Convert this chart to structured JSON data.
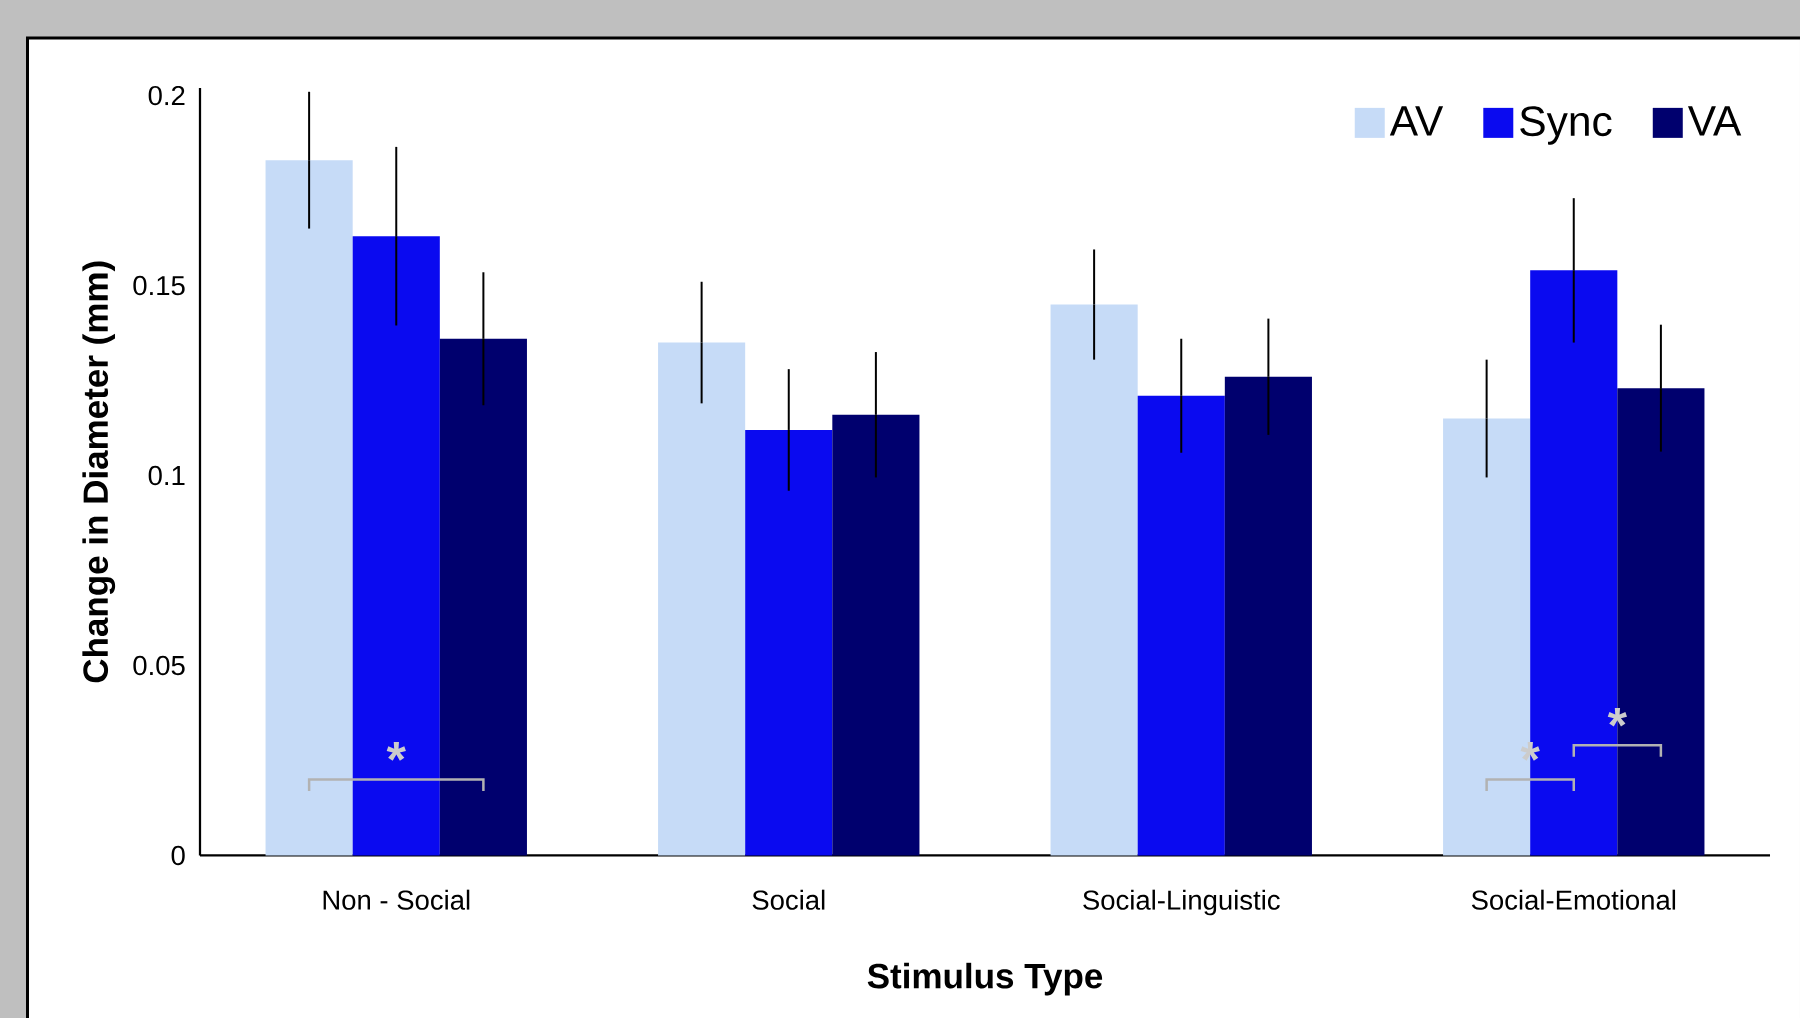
{
  "chart_data": {
    "type": "bar",
    "xlabel": "Stimulus Type",
    "ylabel": "Change in Diameter (mm)",
    "categories": [
      "Non - Social",
      "Social",
      "Social-Linguistic",
      "Social-Emotional"
    ],
    "series": [
      {
        "name": "AV",
        "color": "#c6dbf7",
        "values": [
          0.183,
          0.135,
          0.145,
          0.115
        ],
        "errors": [
          0.018,
          0.016,
          0.0145,
          0.0155
        ]
      },
      {
        "name": "Sync",
        "color": "#0a0af0",
        "values": [
          0.163,
          0.112,
          0.121,
          0.154
        ],
        "errors": [
          0.0235,
          0.016,
          0.015,
          0.019
        ]
      },
      {
        "name": "VA",
        "color": "#00006e",
        "values": [
          0.136,
          0.116,
          0.126,
          0.123
        ],
        "errors": [
          0.0175,
          0.0165,
          0.0153,
          0.0167
        ]
      }
    ],
    "ylim": [
      0,
      0.202
    ],
    "yticks": [
      0,
      0.05,
      0.1,
      0.15,
      0.2
    ],
    "grid": false,
    "legend": "top right",
    "annotations": [
      "*",
      "*",
      "*"
    ]
  }
}
